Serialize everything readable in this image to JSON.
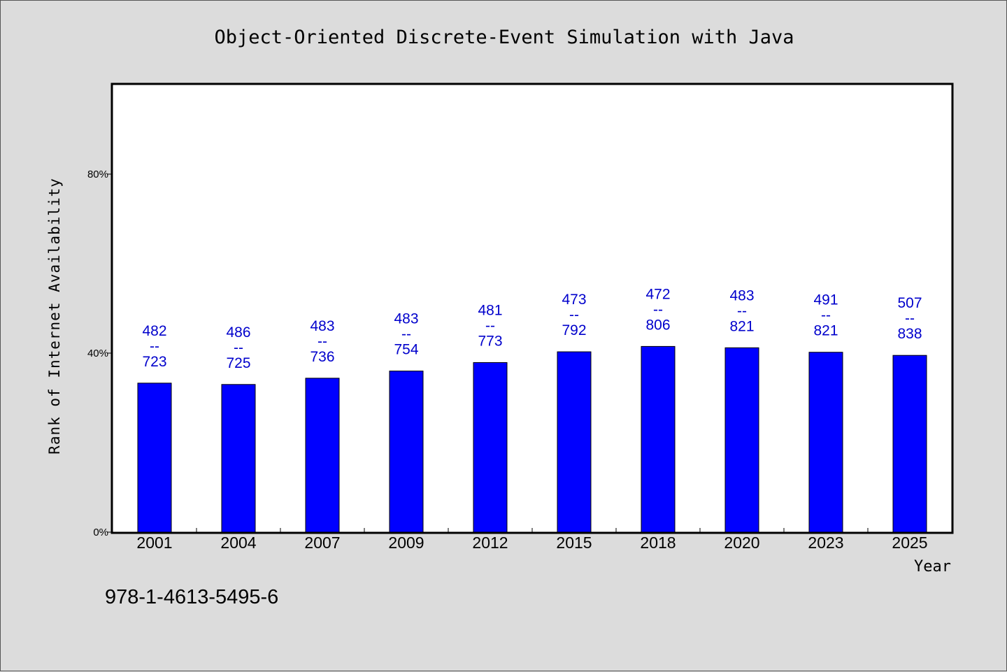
{
  "chart_data": {
    "type": "bar",
    "title": "Object-Oriented Discrete-Event Simulation with Java",
    "xlabel": "Year",
    "ylabel": "Rank of Internet Availability",
    "categories": [
      "2001",
      "2004",
      "2007",
      "2009",
      "2012",
      "2015",
      "2018",
      "2020",
      "2023",
      "2025"
    ],
    "values": [
      33.3,
      33.0,
      34.4,
      36.0,
      37.9,
      40.3,
      41.5,
      41.2,
      40.2,
      39.5
    ],
    "data_labels": [
      [
        "482",
        "--",
        "723"
      ],
      [
        "486",
        "--",
        "725"
      ],
      [
        "483",
        "--",
        "736"
      ],
      [
        "483",
        "--",
        "754"
      ],
      [
        "481",
        "--",
        "773"
      ],
      [
        "473",
        "--",
        "792"
      ],
      [
        "472",
        "--",
        "806"
      ],
      [
        "483",
        "--",
        "821"
      ],
      [
        "491",
        "--",
        "821"
      ],
      [
        "507",
        "--",
        "838"
      ]
    ],
    "yticks": [
      0,
      40,
      80
    ],
    "ytick_labels": [
      "0%",
      "40%",
      "80%"
    ],
    "ylim": [
      0,
      100
    ],
    "grid": false,
    "legend": "none",
    "colors": {
      "bar": "#0000ff",
      "label": "#0000cc",
      "background": "#dcdcdc",
      "plot": "#ffffff"
    }
  },
  "footer": {
    "isbn": "978-1-4613-5495-6"
  }
}
